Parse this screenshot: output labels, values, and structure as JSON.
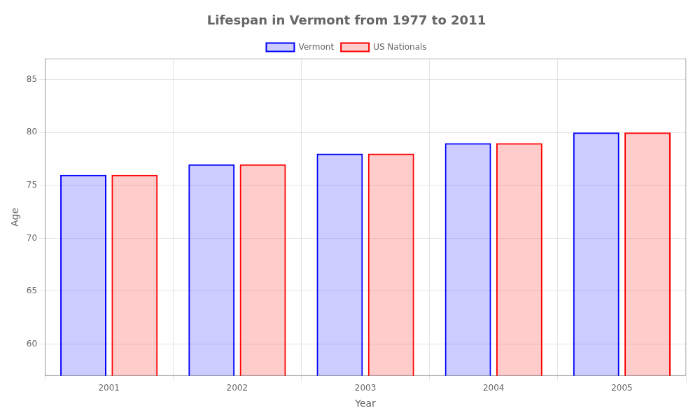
{
  "chart_data": {
    "type": "bar",
    "title": "Lifespan in Vermont from 1977 to 2011",
    "x_label": "Year",
    "y_label": "Age",
    "categories": [
      "2001",
      "2002",
      "2003",
      "2004",
      "2005"
    ],
    "series": [
      {
        "name": "Vermont",
        "color": "#0000ff",
        "values": [
          76,
          77,
          78,
          79,
          80
        ]
      },
      {
        "name": "US Nationals",
        "color": "#ff0000",
        "values": [
          76,
          77,
          78,
          79,
          80
        ]
      }
    ],
    "ylim": [
      57,
      87
    ],
    "yticks": [
      60,
      65,
      70,
      75,
      80,
      85
    ],
    "grid": true,
    "legend": "top"
  }
}
